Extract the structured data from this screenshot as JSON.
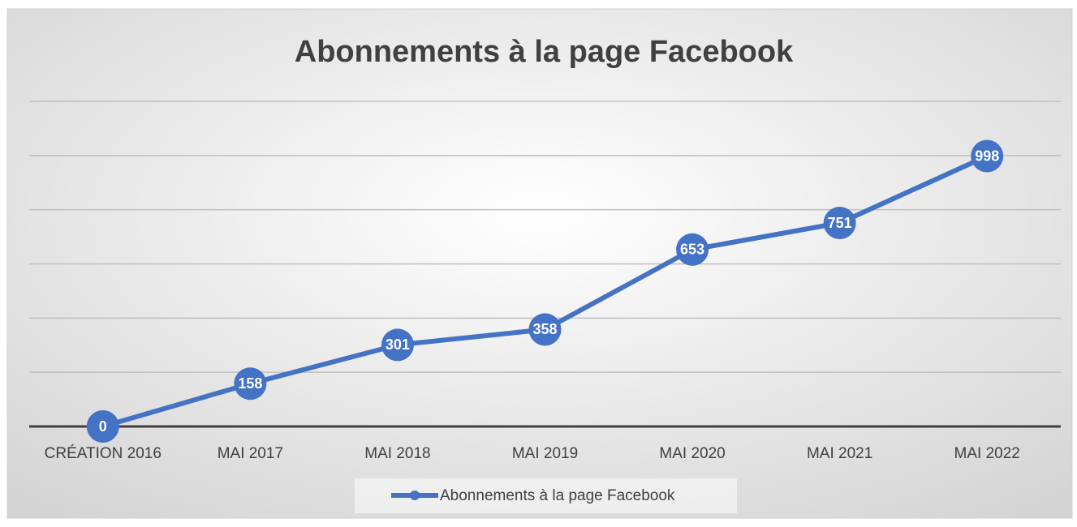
{
  "chart_data": {
    "type": "line",
    "title": "Abonnements à la page Facebook",
    "categories": [
      "CRÉATION 2016",
      "MAI 2017",
      "MAI 2018",
      "MAI 2019",
      "MAI 2020",
      "MAI 2021",
      "MAI 2022"
    ],
    "series": [
      {
        "name": "Abonnements à la page Facebook",
        "color": "#4472c4",
        "values": [
          0,
          158,
          301,
          358,
          653,
          751,
          998
        ]
      }
    ],
    "ylim": [
      0,
      1200
    ],
    "yticks": [
      0,
      200,
      400,
      600,
      800,
      1000,
      1200
    ],
    "grid": true,
    "legend": "bottom"
  }
}
